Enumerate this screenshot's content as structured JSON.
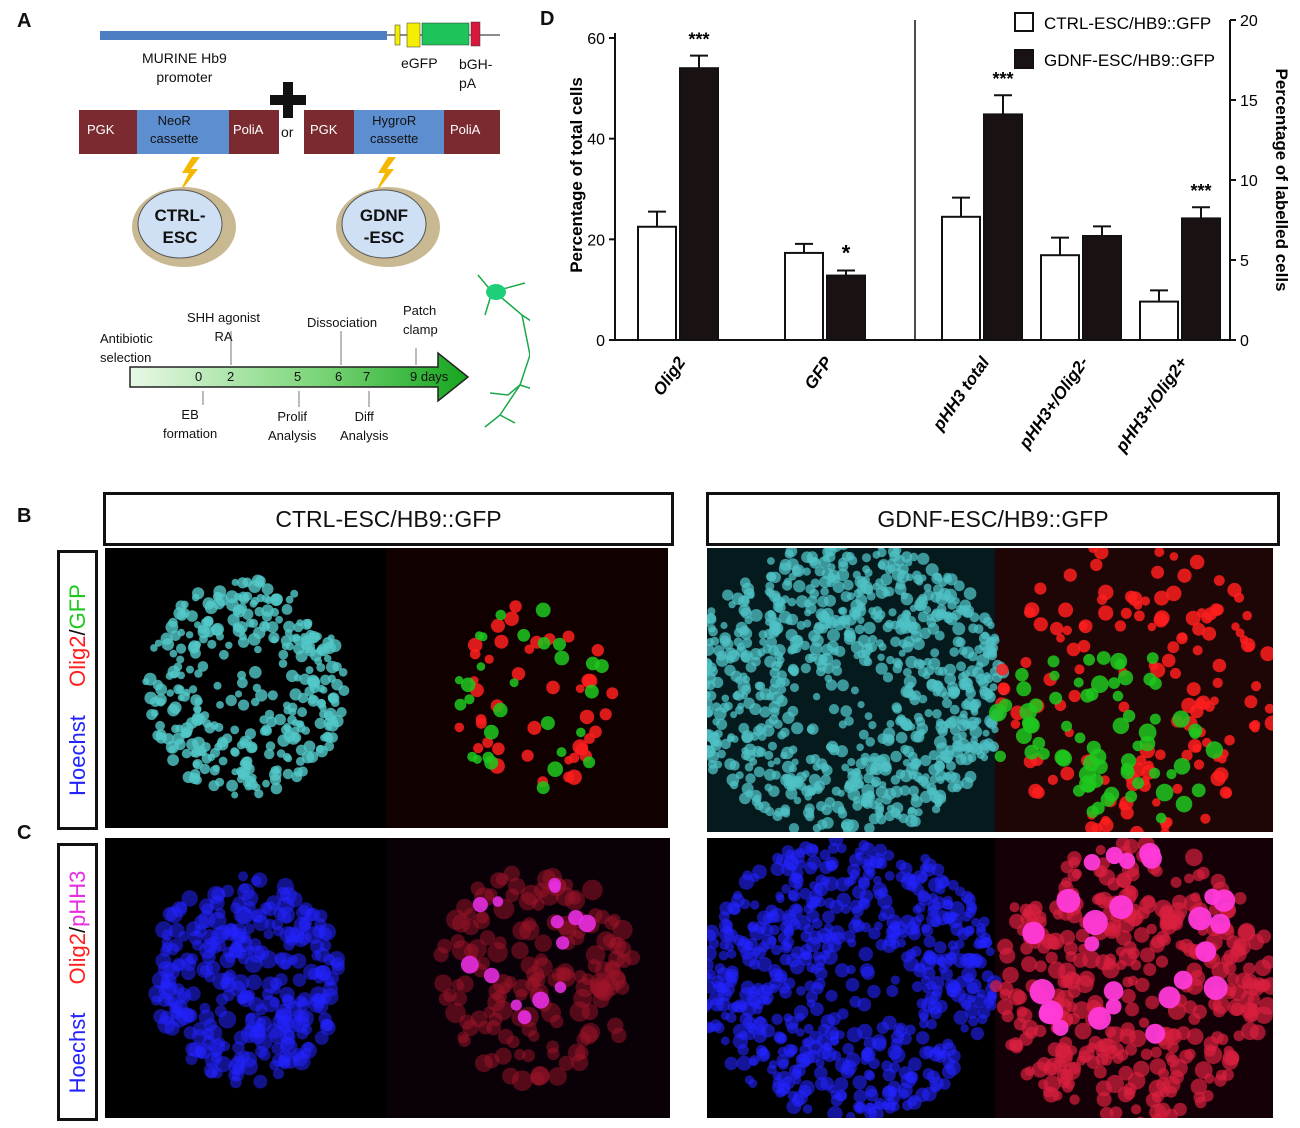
{
  "panels": {
    "a": "A",
    "b": "B",
    "c": "C",
    "d": "D"
  },
  "panel_a": {
    "construct": {
      "promoter": "MURINE Hb9\npromoter",
      "egfp": "eGFP",
      "bgh": "bGH-\npA"
    },
    "plus": "+",
    "or": "or",
    "cassette1": {
      "pgk": "PGK",
      "middle": "NeoR\ncassette",
      "polia": "PoliA"
    },
    "cassette2": {
      "pgk": "PGK",
      "middle": "HygroR\ncassette",
      "polia": "PoliA"
    },
    "cell1": "CTRL-\nESC",
    "cell2": "GDNF\n-ESC",
    "timeline": {
      "above": [
        "Antibiotic\nselection",
        "SHH agonist\nRA",
        "Dissociation",
        "Patch\nclamp"
      ],
      "days": [
        "0",
        "2",
        "5",
        "6",
        "7",
        "9 days"
      ],
      "below": [
        "EB\nformation",
        "Prolif\nAnalysis",
        "Diff\nAnalysis"
      ]
    }
  },
  "chart_data": {
    "type": "bar",
    "legend": [
      "CTRL-ESC/HB9::GFP",
      "GDNF-ESC/HB9::GFP"
    ],
    "series_colors": [
      "#ffffff",
      "#1a1212"
    ],
    "left_axis": {
      "label": "Percentage of total cells",
      "range": [
        0,
        60
      ],
      "ticks": [
        "0",
        "20",
        "40",
        "60"
      ]
    },
    "right_axis": {
      "label": "Percentage of labelled cells",
      "range": [
        0,
        20
      ],
      "ticks": [
        "0",
        "5",
        "10",
        "15",
        "20"
      ]
    },
    "groups": [
      {
        "name": "Olig2",
        "axis": "left",
        "ctrl": 22.5,
        "ctrl_err": 3,
        "gdnf": 54,
        "gdnf_err": 2.5,
        "sig": "***"
      },
      {
        "name": "GFP",
        "axis": "left",
        "ctrl": 17.3,
        "ctrl_err": 1.8,
        "gdnf": 12.8,
        "gdnf_err": 1,
        "sig": "*"
      },
      {
        "name": "pHH3 total",
        "axis": "right",
        "ctrl": 7.7,
        "ctrl_err": 1.2,
        "gdnf": 14.1,
        "gdnf_err": 1.2,
        "sig": "***"
      },
      {
        "name": "pHH3+/Olig2-",
        "axis": "right",
        "ctrl": 5.3,
        "ctrl_err": 1.1,
        "gdnf": 6.5,
        "gdnf_err": 0.6,
        "sig": ""
      },
      {
        "name": "pHH3+/Olig2+",
        "axis": "right",
        "ctrl": 2.4,
        "ctrl_err": 0.7,
        "gdnf": 7.6,
        "gdnf_err": 0.7,
        "sig": "***"
      }
    ]
  },
  "panel_b": {
    "header_left": "CTRL-ESC/HB9::GFP",
    "header_right": "GDNF-ESC/HB9::GFP",
    "stain": {
      "hoechst": "Hoechst",
      "olig2": "Olig2",
      "slash": "/",
      "marker": "GFP"
    }
  },
  "panel_c": {
    "stain": {
      "hoechst": "Hoechst",
      "olig2": "Olig2",
      "slash": "/",
      "marker": "pHH3"
    }
  },
  "colors": {
    "construct_blue": "#4d7ec4",
    "egfp_yellow": "#f4ee00",
    "egfp_green": "#1ec35a",
    "bgh_red": "#d8183a",
    "cassette_blue": "#5d8ed0",
    "cassette_red": "#7b2b30",
    "bolt": "#f5b800",
    "cell_outer": "#c9b993",
    "cell_inner": "#cfe0f4",
    "hoechst": "#2323ff",
    "olig2": "#ff1e1e",
    "gfp": "#1ec81e",
    "phh3": "#e62de0"
  }
}
